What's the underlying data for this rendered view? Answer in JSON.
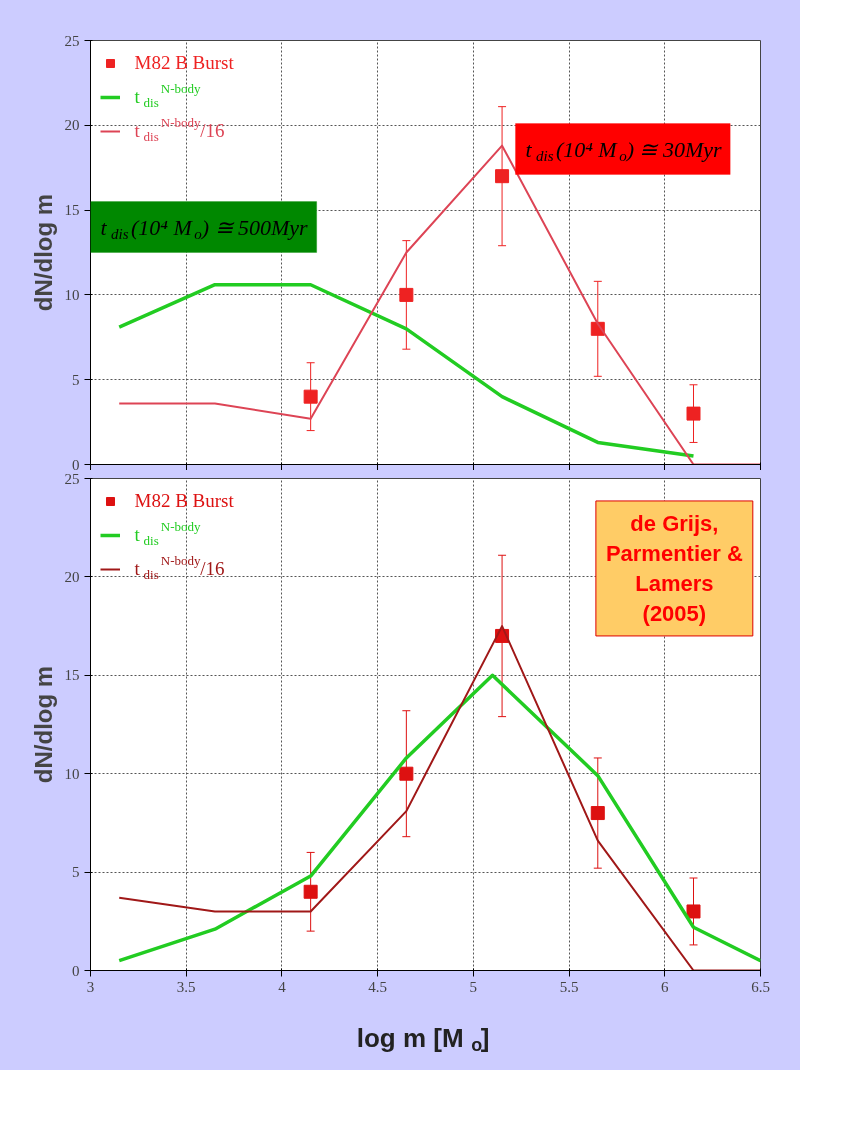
{
  "chart_data": [
    {
      "type": "line",
      "ylabel": "dN/dlog m",
      "xlim": [
        3,
        6.5
      ],
      "ylim": [
        0,
        25
      ],
      "xticks": [
        3,
        3.5,
        4,
        4.5,
        5,
        5.5,
        6,
        6.5
      ],
      "yticks": [
        0,
        5,
        10,
        15,
        20,
        25
      ],
      "tick_labels": "y",
      "grid": true,
      "legend": "top left",
      "annotations": [
        "t$_{dis}$(10⁴ M$_{o}$) ≅ 30Myr",
        "t$_{dis}$(10⁴ M$_{o}$) ≅ 500Myr"
      ],
      "series": [
        {
          "type": "scatter",
          "name": "M82 B Burst",
          "color": "#ee2222",
          "marker": "square",
          "x": [
            4.15,
            4.65,
            5.15,
            5.65,
            6.15
          ],
          "values": [
            4,
            10,
            17,
            8,
            3
          ],
          "errors": [
            [
              2,
              6
            ],
            [
              6.8,
              13.2
            ],
            [
              12.9,
              21.1
            ],
            [
              5.2,
              10.8
            ],
            [
              1.3,
              4.7
            ]
          ]
        },
        {
          "type": "line",
          "name": "t$_{dis}$$^{N-body}$",
          "color": "#22cc22",
          "x": [
            3.15,
            3.65,
            4.15,
            4.65,
            5.15,
            5.65,
            6.15
          ],
          "values": [
            8.1,
            10.6,
            10.6,
            8,
            4,
            1.3,
            0.5
          ]
        },
        {
          "type": "line",
          "name": "t$_{dis}$$^{N-body}$/16",
          "color": "#dd4455",
          "x": [
            3.15,
            3.65,
            4.15,
            4.65,
            5.15,
            5.65,
            6.15,
            6.5
          ],
          "values": [
            3.6,
            3.6,
            2.7,
            12.5,
            18.8,
            8.3,
            0,
            0
          ]
        }
      ]
    },
    {
      "type": "line",
      "ylabel": "dN/dlog m",
      "xlabel": "log m  [M$_{o}$]",
      "xlim": [
        3,
        6.5
      ],
      "ylim": [
        0,
        25
      ],
      "xticks": [
        3,
        3.5,
        4,
        4.5,
        5,
        5.5,
        6,
        6.5
      ],
      "yticks": [
        0,
        5,
        10,
        15,
        20,
        25
      ],
      "grid": true,
      "legend": "top left",
      "annotations": [
        "de Grijs, Parmentier & Lamers (2005)"
      ],
      "series": [
        {
          "type": "scatter",
          "name": "M82 B Burst",
          "color": "#dd1111",
          "marker": "square",
          "x": [
            4.15,
            4.65,
            5.15,
            5.65,
            6.15
          ],
          "values": [
            4,
            10,
            17,
            8,
            3
          ],
          "errors": [
            [
              2,
              6
            ],
            [
              6.8,
              13.2
            ],
            [
              12.9,
              21.1
            ],
            [
              5.2,
              10.8
            ],
            [
              1.3,
              4.7
            ]
          ]
        },
        {
          "type": "line",
          "name": "t$_{dis}$$^{N-body}$",
          "color": "#22cc22",
          "x": [
            3.15,
            3.65,
            4.15,
            4.65,
            5.1,
            5.65,
            6.15,
            6.5
          ],
          "values": [
            0.5,
            2.1,
            4.8,
            10.8,
            15,
            9.9,
            2.2,
            0.5
          ]
        },
        {
          "type": "line",
          "name": "t$_{dis}$$^{N-body}$/16",
          "color": "#a01818",
          "x": [
            3.15,
            3.65,
            4.15,
            4.65,
            5.15,
            5.65,
            6.15,
            6.5
          ],
          "values": [
            3.7,
            3,
            3,
            8.1,
            17.5,
            6.6,
            0,
            0
          ]
        }
      ]
    }
  ]
}
